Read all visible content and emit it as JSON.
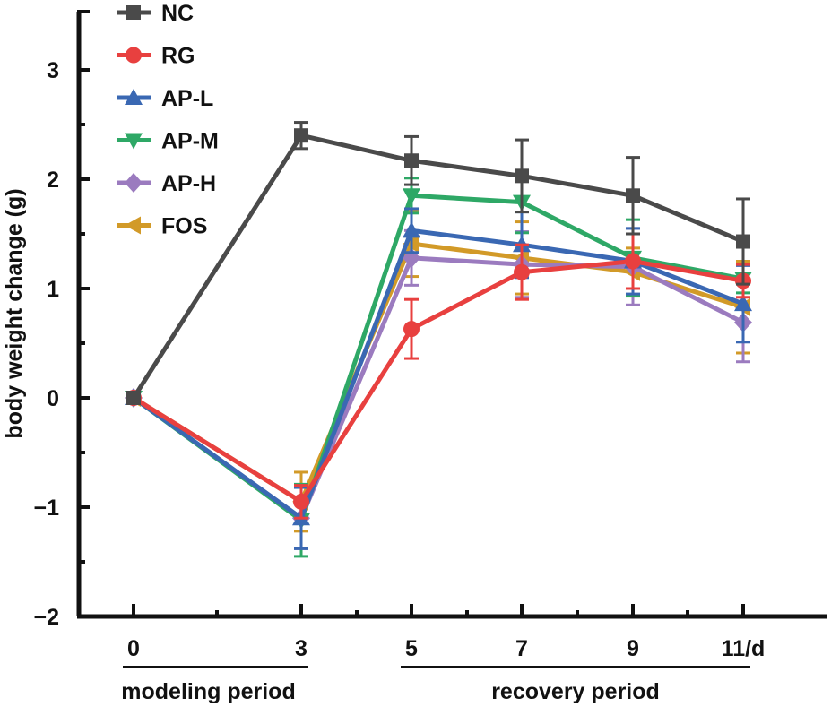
{
  "chart_data": {
    "type": "line",
    "title": "",
    "xlabel": "",
    "ylabel": "body weight change (g)",
    "ylim": [
      -2,
      3.5
    ],
    "xlim": [
      -1,
      12.5
    ],
    "y_ticks": [
      -2,
      -1,
      0,
      1,
      2,
      3
    ],
    "y_tick_labels": [
      "−2",
      "−1",
      "0",
      "1",
      "2",
      "3"
    ],
    "y_minor_ticks": [
      -1.5,
      -0.5,
      0.5,
      1.5,
      2.5
    ],
    "x": [
      0,
      3,
      5,
      7,
      9,
      11
    ],
    "x_tick_labels": [
      "0",
      "3",
      "5",
      "7",
      "9",
      "11/d"
    ],
    "x_minor_ticks": [
      1.5,
      4,
      6,
      8,
      10
    ],
    "periods": [
      {
        "label": "modeling period",
        "from": 0,
        "to": 3
      },
      {
        "label": "recovery period",
        "from": 5,
        "to": 11
      }
    ],
    "legend_position": "top-left",
    "grid": false,
    "series": [
      {
        "name": "NC",
        "color": "#4a4a4a",
        "marker": "square",
        "values": [
          0,
          2.4,
          2.17,
          2.03,
          1.85,
          1.43
        ],
        "errors": [
          0,
          0.12,
          0.22,
          0.33,
          0.35,
          0.39
        ]
      },
      {
        "name": "RG",
        "color": "#e8403f",
        "marker": "circle",
        "values": [
          0,
          -0.95,
          0.63,
          1.15,
          1.25,
          1.07
        ],
        "errors": [
          0,
          0.15,
          0.27,
          0.25,
          0.25,
          0.15
        ]
      },
      {
        "name": "AP-L",
        "color": "#3a68b3",
        "marker": "triangle-up",
        "values": [
          0,
          -1.1,
          1.53,
          1.4,
          1.25,
          0.86
        ],
        "errors": [
          0,
          0.28,
          0.2,
          0.3,
          0.3,
          0.35
        ]
      },
      {
        "name": "AP-M",
        "color": "#2ea866",
        "marker": "triangle-down",
        "values": [
          0,
          -1.12,
          1.85,
          1.79,
          1.28,
          1.09
        ],
        "errors": [
          0,
          0.33,
          0.16,
          0.28,
          0.35,
          0.13
        ]
      },
      {
        "name": "AP-H",
        "color": "#9b7bbf",
        "marker": "diamond",
        "values": [
          0,
          -1.1,
          1.28,
          1.22,
          1.2,
          0.69
        ],
        "errors": [
          0,
          0.28,
          0.25,
          0.3,
          0.35,
          0.36
        ]
      },
      {
        "name": "FOS",
        "color": "#d29a28",
        "marker": "triangle-left",
        "values": [
          0,
          -0.95,
          1.41,
          1.28,
          1.15,
          0.83
        ],
        "errors": [
          0,
          0.27,
          0.3,
          0.33,
          0.22,
          0.42
        ]
      }
    ]
  }
}
